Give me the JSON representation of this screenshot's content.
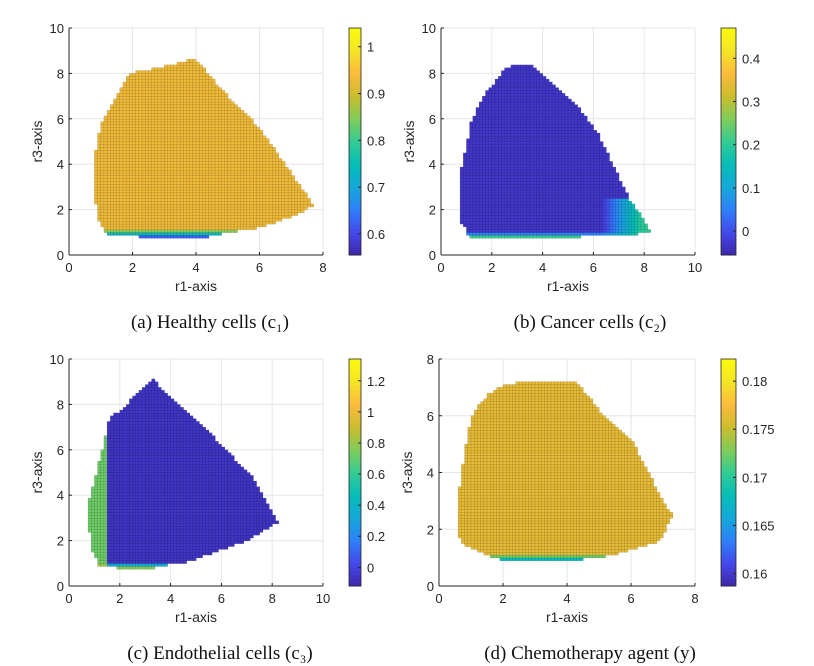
{
  "chart_data": [
    {
      "type": "heatmap",
      "panel": "a",
      "caption": "(a) Healthy cells (c₁)",
      "xlabel": "r1-axis",
      "ylabel": "r3-axis",
      "xlim": [
        0,
        8
      ],
      "ylim": [
        0,
        10
      ],
      "xticks": [
        "0",
        "2",
        "4",
        "6",
        "8"
      ],
      "yticks": [
        "0",
        "2",
        "4",
        "6",
        "8",
        "10"
      ],
      "grid": true,
      "colorbar": {
        "range": [
          0.555,
          1.04
        ],
        "ticks": [
          "0.6",
          "0.7",
          "0.8",
          "0.9",
          "1"
        ],
        "tick_values": [
          0.6,
          0.7,
          0.8,
          0.9,
          1.0
        ]
      },
      "region_boundary": [
        [
          0.8,
          2.8
        ],
        [
          0.8,
          4.3
        ],
        [
          1.0,
          5.7
        ],
        [
          1.3,
          6.5
        ],
        [
          1.9,
          8.0
        ],
        [
          3.0,
          8.3
        ],
        [
          3.8,
          8.6
        ],
        [
          4.0,
          8.6
        ],
        [
          5.0,
          7.0
        ],
        [
          6.0,
          5.6
        ],
        [
          7.0,
          3.6
        ],
        [
          7.7,
          2.2
        ],
        [
          7.2,
          1.8
        ],
        [
          6.0,
          1.2
        ],
        [
          5.0,
          1.0
        ],
        [
          4.4,
          0.8
        ],
        [
          2.3,
          0.8
        ],
        [
          1.2,
          0.9
        ],
        [
          0.9,
          1.6
        ]
      ],
      "field": {
        "bulk_value": 0.93,
        "low_band": {
          "r3_max": 1.15,
          "min_value": 0.57
        }
      }
    },
    {
      "type": "heatmap",
      "panel": "b",
      "caption": "(b) Cancer cells (c₂)",
      "xlabel": "r1-axis",
      "ylabel": "r3-axis",
      "xlim": [
        0,
        10
      ],
      "ylim": [
        0,
        10
      ],
      "xticks": [
        "0",
        "2",
        "4",
        "6",
        "8",
        "10"
      ],
      "yticks": [
        "0",
        "2",
        "4",
        "6",
        "8",
        "10"
      ],
      "grid": true,
      "colorbar": {
        "range": [
          -0.055,
          0.47
        ],
        "ticks": [
          "0",
          "0.1",
          "0.2",
          "0.3",
          "0.4"
        ],
        "tick_values": [
          0,
          0.1,
          0.2,
          0.3,
          0.4
        ]
      },
      "region_boundary": [
        [
          0.8,
          1.4
        ],
        [
          0.8,
          3.8
        ],
        [
          1.2,
          5.9
        ],
        [
          1.6,
          6.9
        ],
        [
          2.1,
          7.6
        ],
        [
          2.6,
          8.3
        ],
        [
          3.5,
          8.4
        ],
        [
          4.2,
          7.8
        ],
        [
          5.2,
          6.8
        ],
        [
          6.2,
          5.3
        ],
        [
          6.8,
          3.9
        ],
        [
          7.4,
          2.5
        ],
        [
          8.3,
          1.0
        ],
        [
          7.4,
          0.9
        ],
        [
          5.3,
          0.8
        ],
        [
          3.2,
          0.7
        ],
        [
          1.1,
          0.7
        ],
        [
          1.0,
          1.1
        ]
      ],
      "field": {
        "bulk_value": -0.03,
        "bottom_band": {
          "r3_max": 1.0,
          "max_value": 0.36
        },
        "right_edge_value": 0.2
      }
    },
    {
      "type": "heatmap",
      "panel": "c",
      "caption": "(c) Endothelial cells (c₃)",
      "xlabel": "r1-axis",
      "ylabel": "r3-axis",
      "xlim": [
        0,
        10
      ],
      "ylim": [
        0,
        10
      ],
      "xticks": [
        "0",
        "2",
        "4",
        "6",
        "8",
        "10"
      ],
      "yticks": [
        "0",
        "2",
        "4",
        "6",
        "8",
        "10"
      ],
      "grid": true,
      "colorbar": {
        "range": [
          -0.12,
          1.34
        ],
        "ticks": [
          "0",
          "0.2",
          "0.4",
          "0.6",
          "0.8",
          "1",
          "1.2"
        ],
        "tick_values": [
          0,
          0.2,
          0.4,
          0.6,
          0.8,
          1.0,
          1.2
        ]
      },
      "region_boundary": [
        [
          0.8,
          2.5
        ],
        [
          0.8,
          3.8
        ],
        [
          1.2,
          5.5
        ],
        [
          1.6,
          7.4
        ],
        [
          2.1,
          7.8
        ],
        [
          2.7,
          8.5
        ],
        [
          3.3,
          9.1
        ],
        [
          4.3,
          8.0
        ],
        [
          5.5,
          6.8
        ],
        [
          7.2,
          4.8
        ],
        [
          7.6,
          4.1
        ],
        [
          8.2,
          2.8
        ],
        [
          7.0,
          2.0
        ],
        [
          6.0,
          1.6
        ],
        [
          4.5,
          1.0
        ],
        [
          3.5,
          0.9
        ],
        [
          3.4,
          0.8
        ],
        [
          2.0,
          0.8
        ],
        [
          1.2,
          0.9
        ],
        [
          0.9,
          1.6
        ]
      ],
      "field": {
        "bulk_value": -0.06,
        "left_band": {
          "r1_max": 1.5,
          "value": 0.72
        },
        "bottom_band": {
          "r3_max": 1.05,
          "max_value": 0.98
        }
      }
    },
    {
      "type": "heatmap",
      "panel": "d",
      "caption": "(d) Chemotherapy agent (y)",
      "xlabel": "r1-axis",
      "ylabel": "r3-axis",
      "xlim": [
        0,
        8
      ],
      "ylim": [
        0,
        8
      ],
      "xticks": [
        "0",
        "2",
        "4",
        "6",
        "8"
      ],
      "yticks": [
        "0",
        "2",
        "4",
        "6",
        "8"
      ],
      "grid": true,
      "colorbar": {
        "range": [
          0.1587,
          0.1823
        ],
        "ticks": [
          "0.16",
          "0.165",
          "0.17",
          "0.175",
          "0.18"
        ],
        "tick_values": [
          0.16,
          0.165,
          0.17,
          0.175,
          0.18
        ]
      },
      "region_boundary": [
        [
          0.6,
          2.0
        ],
        [
          0.6,
          3.0
        ],
        [
          0.7,
          4.0
        ],
        [
          1.0,
          5.9
        ],
        [
          1.3,
          6.5
        ],
        [
          1.8,
          7.0
        ],
        [
          2.6,
          7.2
        ],
        [
          4.3,
          7.2
        ],
        [
          5.0,
          6.2
        ],
        [
          6.0,
          5.2
        ],
        [
          7.0,
          3.0
        ],
        [
          7.3,
          2.5
        ],
        [
          6.9,
          1.6
        ],
        [
          5.5,
          1.1
        ],
        [
          5.0,
          1.0
        ],
        [
          4.0,
          0.9
        ],
        [
          2.0,
          0.9
        ],
        [
          1.5,
          1.1
        ],
        [
          0.7,
          1.5
        ]
      ],
      "field": {
        "bulk_value": 0.1765,
        "low_band": {
          "r3_max": 1.15,
          "min_value": 0.1595
        }
      }
    }
  ]
}
